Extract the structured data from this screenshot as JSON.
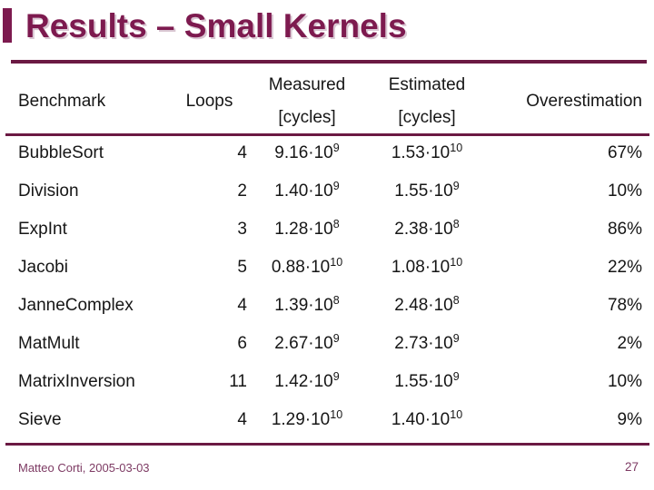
{
  "slide": {
    "title": "Results – Small Kernels",
    "footer_left": "Matteo Corti, 2005-03-03",
    "page_number": "27"
  },
  "colors": {
    "accent_maroon": "#7d1a4f",
    "rule_maroon": "#6b1943",
    "footer_maroon": "#7d3a63",
    "table_text": "#161616"
  },
  "table": {
    "headers": {
      "benchmark": "Benchmark",
      "loops": "Loops",
      "measured_line1": "Measured",
      "measured_line2": "[cycles]",
      "estimated_line1": "Estimated",
      "estimated_line2": "[cycles]",
      "overestimation": "Overestimation"
    },
    "rows": [
      {
        "benchmark": "BubbleSort",
        "loops": "4",
        "measured_base": "9.16·10",
        "measured_exp": "9",
        "estimated_base": "1.53·10",
        "estimated_exp": "10",
        "overestimation": "67%"
      },
      {
        "benchmark": "Division",
        "loops": "2",
        "measured_base": "1.40·10",
        "measured_exp": "9",
        "estimated_base": "1.55·10",
        "estimated_exp": "9",
        "overestimation": "10%"
      },
      {
        "benchmark": "ExpInt",
        "loops": "3",
        "measured_base": "1.28·10",
        "measured_exp": "8",
        "estimated_base": "2.38·10",
        "estimated_exp": "8",
        "overestimation": "86%"
      },
      {
        "benchmark": "Jacobi",
        "loops": "5",
        "measured_base": "0.88·10",
        "measured_exp": "10",
        "estimated_base": "1.08·10",
        "estimated_exp": "10",
        "overestimation": "22%"
      },
      {
        "benchmark": "JanneComplex",
        "loops": "4",
        "measured_base": "1.39·10",
        "measured_exp": "8",
        "estimated_base": "2.48·10",
        "estimated_exp": "8",
        "overestimation": "78%"
      },
      {
        "benchmark": "MatMult",
        "loops": "6",
        "measured_base": "2.67·10",
        "measured_exp": "9",
        "estimated_base": "2.73·10",
        "estimated_exp": "9",
        "overestimation": "2%"
      },
      {
        "benchmark": "MatrixInversion",
        "loops": "11",
        "measured_base": "1.42·10",
        "measured_exp": "9",
        "estimated_base": "1.55·10",
        "estimated_exp": "9",
        "overestimation": "10%"
      },
      {
        "benchmark": "Sieve",
        "loops": "4",
        "measured_base": "1.29·10",
        "measured_exp": "10",
        "estimated_base": "1.40·10",
        "estimated_exp": "10",
        "overestimation": "9%"
      }
    ]
  }
}
